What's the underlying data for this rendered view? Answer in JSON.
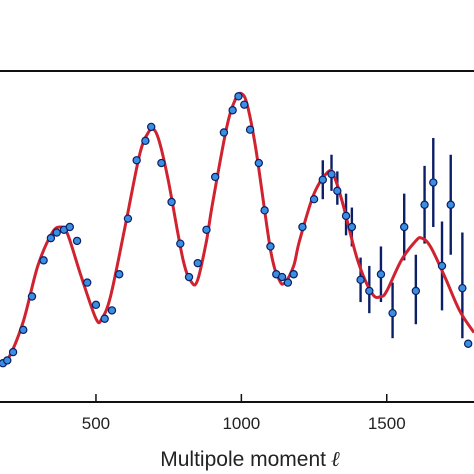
{
  "chart_data": {
    "type": "scatter",
    "xlabel": "Multipole moment",
    "xlabel_symbol": "ℓ",
    "x_ticks": [
      500,
      1000,
      1500
    ],
    "xlim": [
      170,
      1800
    ],
    "ylim": [
      0,
      1
    ],
    "y_units": "relative (axis unlabeled in view)",
    "grid": false,
    "colors": {
      "fit_curve": "#d0222f",
      "points": "#3a8fe0",
      "point_edge": "#0b1f66",
      "error_bars": "#0b1f66"
    },
    "series": [
      {
        "kind": "model_curve",
        "x": [
          170,
          200,
          250,
          300,
          350,
          380,
          400,
          420,
          450,
          500,
          520,
          550,
          600,
          650,
          680,
          700,
          720,
          750,
          800,
          830,
          850,
          880,
          900,
          950,
          980,
          1000,
          1020,
          1050,
          1100,
          1130,
          1150,
          1180,
          1200,
          1250,
          1300,
          1320,
          1350,
          1400,
          1450,
          1480,
          1500,
          1550,
          1600,
          1620,
          1650,
          1700,
          1750,
          1800
        ],
        "y": [
          0.01,
          0.03,
          0.16,
          0.36,
          0.48,
          0.5,
          0.48,
          0.42,
          0.32,
          0.17,
          0.17,
          0.25,
          0.5,
          0.76,
          0.84,
          0.85,
          0.8,
          0.66,
          0.38,
          0.3,
          0.31,
          0.45,
          0.58,
          0.86,
          0.96,
          0.98,
          0.94,
          0.78,
          0.42,
          0.31,
          0.3,
          0.36,
          0.45,
          0.62,
          0.7,
          0.68,
          0.58,
          0.38,
          0.26,
          0.25,
          0.27,
          0.38,
          0.45,
          0.46,
          0.43,
          0.32,
          0.2,
          0.12
        ]
      },
      {
        "kind": "measurements",
        "points": [
          {
            "x": 180,
            "y": 0.01
          },
          {
            "x": 195,
            "y": 0.02
          },
          {
            "x": 215,
            "y": 0.05
          },
          {
            "x": 250,
            "y": 0.13
          },
          {
            "x": 280,
            "y": 0.25
          },
          {
            "x": 320,
            "y": 0.38
          },
          {
            "x": 345,
            "y": 0.46
          },
          {
            "x": 365,
            "y": 0.48
          },
          {
            "x": 390,
            "y": 0.49
          },
          {
            "x": 410,
            "y": 0.5
          },
          {
            "x": 435,
            "y": 0.45
          },
          {
            "x": 470,
            "y": 0.3
          },
          {
            "x": 500,
            "y": 0.22
          },
          {
            "x": 530,
            "y": 0.17
          },
          {
            "x": 555,
            "y": 0.2
          },
          {
            "x": 580,
            "y": 0.33
          },
          {
            "x": 610,
            "y": 0.53
          },
          {
            "x": 640,
            "y": 0.74
          },
          {
            "x": 670,
            "y": 0.81
          },
          {
            "x": 690,
            "y": 0.86
          },
          {
            "x": 725,
            "y": 0.73
          },
          {
            "x": 760,
            "y": 0.59
          },
          {
            "x": 790,
            "y": 0.44
          },
          {
            "x": 820,
            "y": 0.32
          },
          {
            "x": 850,
            "y": 0.37
          },
          {
            "x": 880,
            "y": 0.49
          },
          {
            "x": 910,
            "y": 0.68
          },
          {
            "x": 940,
            "y": 0.84
          },
          {
            "x": 970,
            "y": 0.92
          },
          {
            "x": 990,
            "y": 0.97
          },
          {
            "x": 1010,
            "y": 0.94
          },
          {
            "x": 1030,
            "y": 0.85
          },
          {
            "x": 1060,
            "y": 0.73
          },
          {
            "x": 1080,
            "y": 0.56
          },
          {
            "x": 1100,
            "y": 0.43
          },
          {
            "x": 1120,
            "y": 0.33
          },
          {
            "x": 1140,
            "y": 0.32
          },
          {
            "x": 1160,
            "y": 0.3
          },
          {
            "x": 1180,
            "y": 0.33
          },
          {
            "x": 1210,
            "y": 0.5
          },
          {
            "x": 1250,
            "y": 0.6
          },
          {
            "x": 1280,
            "y": 0.67
          },
          {
            "x": 1310,
            "y": 0.69
          },
          {
            "x": 1330,
            "y": 0.63
          },
          {
            "x": 1360,
            "y": 0.54
          },
          {
            "x": 1380,
            "y": 0.5
          },
          {
            "x": 1410,
            "y": 0.31
          },
          {
            "x": 1440,
            "y": 0.27
          },
          {
            "x": 1480,
            "y": 0.33
          },
          {
            "x": 1520,
            "y": 0.19
          },
          {
            "x": 1560,
            "y": 0.5
          },
          {
            "x": 1600,
            "y": 0.27
          },
          {
            "x": 1630,
            "y": 0.58
          },
          {
            "x": 1660,
            "y": 0.66
          },
          {
            "x": 1690,
            "y": 0.36
          },
          {
            "x": 1720,
            "y": 0.58
          },
          {
            "x": 1760,
            "y": 0.28
          },
          {
            "x": 1780,
            "y": 0.08
          }
        ],
        "error_bars": [
          {
            "x": 1280,
            "ylo": 0.6,
            "yhi": 0.74
          },
          {
            "x": 1310,
            "ylo": 0.63,
            "yhi": 0.76
          },
          {
            "x": 1330,
            "ylo": 0.58,
            "yhi": 0.7
          },
          {
            "x": 1360,
            "ylo": 0.47,
            "yhi": 0.62
          },
          {
            "x": 1380,
            "ylo": 0.43,
            "yhi": 0.57
          },
          {
            "x": 1410,
            "ylo": 0.23,
            "yhi": 0.39
          },
          {
            "x": 1440,
            "ylo": 0.19,
            "yhi": 0.36
          },
          {
            "x": 1480,
            "ylo": 0.23,
            "yhi": 0.43
          },
          {
            "x": 1520,
            "ylo": 0.1,
            "yhi": 0.3
          },
          {
            "x": 1560,
            "ylo": 0.38,
            "yhi": 0.62
          },
          {
            "x": 1600,
            "ylo": 0.15,
            "yhi": 0.4
          },
          {
            "x": 1630,
            "ylo": 0.44,
            "yhi": 0.72
          },
          {
            "x": 1660,
            "ylo": 0.5,
            "yhi": 0.82
          },
          {
            "x": 1690,
            "ylo": 0.2,
            "yhi": 0.52
          },
          {
            "x": 1720,
            "ylo": 0.4,
            "yhi": 0.76
          },
          {
            "x": 1760,
            "ylo": 0.1,
            "yhi": 0.48
          }
        ]
      }
    ]
  }
}
